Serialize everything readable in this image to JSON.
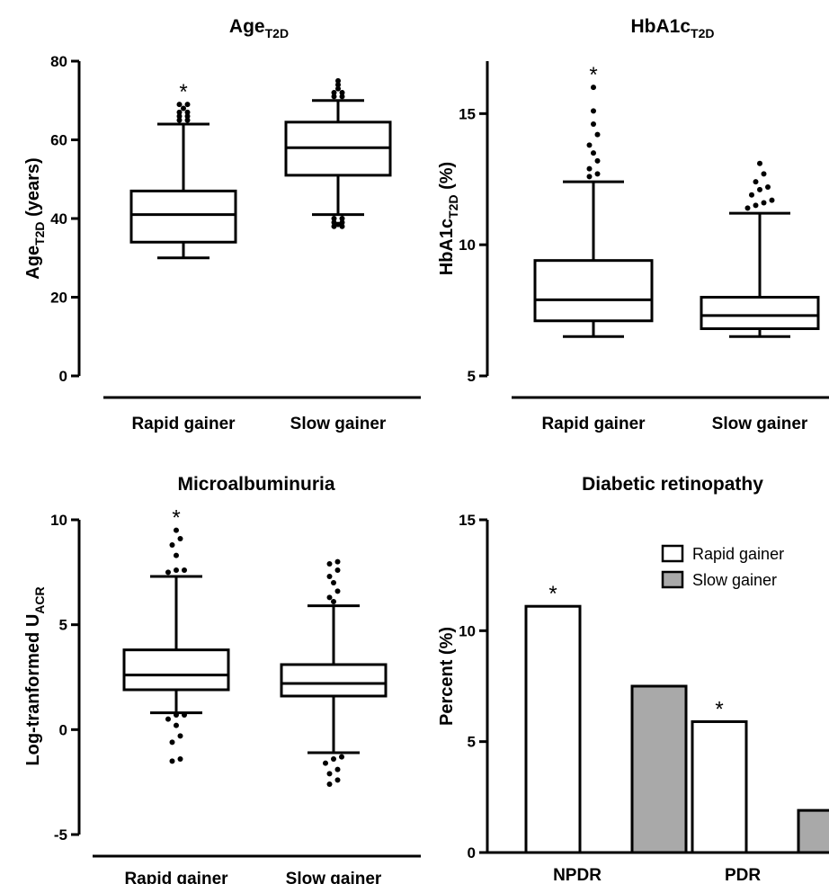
{
  "chart_data": [
    {
      "type": "box",
      "title": "Age",
      "title_subscript": "T2D",
      "ylabel": "Age",
      "ylabel_subscript": "T2D",
      "ylabel_suffix": " (years)",
      "ylim": [
        0,
        80
      ],
      "yticks": [
        0,
        20,
        40,
        60,
        80
      ],
      "ytick_labels": [
        "0",
        "20",
        "40",
        "60",
        "80"
      ],
      "categories": [
        "Rapid gainer",
        "Slow gainer"
      ],
      "boxes": [
        {
          "name": "Rapid gainer",
          "whisker_low": 30,
          "q1": 34,
          "median": 41,
          "q3": 47,
          "whisker_high": 64,
          "outliers": [
            65,
            65,
            66,
            66,
            67,
            67,
            68,
            69,
            69
          ],
          "significance": "*"
        },
        {
          "name": "Slow gainer",
          "whisker_low": 41,
          "q1": 51,
          "median": 58,
          "q3": 64.5,
          "whisker_high": 70,
          "outliers": [
            38,
            38,
            38.5,
            39,
            39,
            40,
            40,
            71,
            71,
            72,
            72,
            73,
            74,
            75
          ],
          "significance": ""
        }
      ]
    },
    {
      "type": "box",
      "title": "HbA1c",
      "title_subscript": "T2D",
      "ylabel": "HbA1c",
      "ylabel_subscript": "T2D",
      "ylabel_suffix": " (%)",
      "ylim": [
        5,
        17
      ],
      "yticks": [
        5,
        10,
        15
      ],
      "ytick_labels": [
        "5",
        "10",
        "15"
      ],
      "categories": [
        "Rapid gainer",
        "Slow gainer"
      ],
      "boxes": [
        {
          "name": "Rapid gainer",
          "whisker_low": 6.5,
          "q1": 7.1,
          "median": 7.9,
          "q3": 9.4,
          "whisker_high": 12.4,
          "outliers": [
            12.6,
            12.7,
            12.9,
            13.2,
            13.5,
            13.8,
            14.2,
            14.6,
            15.1,
            16.0
          ],
          "significance": "*"
        },
        {
          "name": "Slow gainer",
          "whisker_low": 6.5,
          "q1": 6.8,
          "median": 7.3,
          "q3": 8.0,
          "whisker_high": 11.2,
          "outliers": [
            11.4,
            11.5,
            11.6,
            11.7,
            11.9,
            12.1,
            12.2,
            12.4,
            12.7,
            13.1
          ],
          "significance": ""
        }
      ]
    },
    {
      "type": "box",
      "title": "Microalbuminuria",
      "ylabel": "Log-tranformed U",
      "ylabel_subscript": "ACR",
      "ylabel_suffix": "",
      "ylim": [
        -5,
        10
      ],
      "yticks": [
        -5,
        0,
        5,
        10
      ],
      "ytick_labels": [
        "-5",
        "0",
        "5",
        "10"
      ],
      "categories": [
        "Rapid gainer",
        "Slow gainer"
      ],
      "boxes": [
        {
          "name": "Rapid gainer",
          "whisker_low": 0.8,
          "q1": 1.9,
          "median": 2.6,
          "q3": 3.8,
          "whisker_high": 7.3,
          "outliers": [
            -1.5,
            -1.4,
            -0.6,
            -0.3,
            0.2,
            0.5,
            0.7,
            0.7,
            7.5,
            7.6,
            7.6,
            8.3,
            8.8,
            9.1,
            9.5
          ],
          "significance": "*"
        },
        {
          "name": "Slow gainer",
          "whisker_low": -1.1,
          "q1": 1.6,
          "median": 2.2,
          "q3": 3.1,
          "whisker_high": 5.9,
          "outliers": [
            -2.6,
            -2.4,
            -2.1,
            -1.9,
            -1.6,
            -1.4,
            -1.3,
            6.1,
            6.3,
            6.6,
            7.0,
            7.3,
            7.6,
            7.9,
            8.0
          ],
          "significance": ""
        }
      ]
    },
    {
      "type": "bar",
      "title": "Diabetic retinopathy",
      "ylabel": "Percent (%)",
      "ylim": [
        0,
        15
      ],
      "yticks": [
        0,
        5,
        10,
        15
      ],
      "ytick_labels": [
        "0",
        "5",
        "10",
        "15"
      ],
      "categories": [
        "NPDR",
        "PDR"
      ],
      "series": [
        {
          "name": "Rapid gainer",
          "values": [
            11.1,
            5.9
          ],
          "color": "#ffffff",
          "significance": [
            "*",
            "*"
          ]
        },
        {
          "name": "Slow gainer",
          "values": [
            7.5,
            1.9
          ],
          "color": "#a9a9a9",
          "significance": [
            "",
            ""
          ]
        }
      ],
      "legend_position": "top-right"
    }
  ]
}
